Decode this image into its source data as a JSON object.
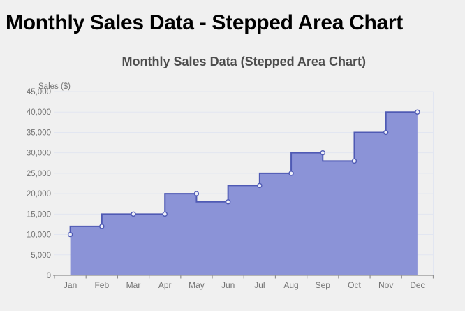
{
  "page": {
    "title": "Monthly Sales Data - Stepped Area Chart"
  },
  "chart_data": {
    "type": "area",
    "step": "start",
    "title": "Monthly Sales Data (Stepped Area Chart)",
    "xlabel": "",
    "ylabel": "Sales ($)",
    "categories": [
      "Jan",
      "Feb",
      "Mar",
      "Apr",
      "May",
      "Jun",
      "Jul",
      "Aug",
      "Sep",
      "Oct",
      "Nov",
      "Dec"
    ],
    "values": [
      10000,
      12000,
      15000,
      15000,
      20000,
      18000,
      22000,
      25000,
      30000,
      28000,
      35000,
      40000
    ],
    "ylim": [
      0,
      45000
    ],
    "ytick_step": 5000,
    "grid": true,
    "legend": false,
    "markers": true,
    "colors": {
      "line": "#4f5ab4",
      "fill": "#8b93d7",
      "marker_fill": "#eef0fa",
      "gridline": "#e2e6f1",
      "axis": "#919191",
      "tick_label": "#737373",
      "chart_title": "#4d4d4d",
      "page_bg": "#f0f0f0",
      "page_title": "#000000"
    }
  }
}
